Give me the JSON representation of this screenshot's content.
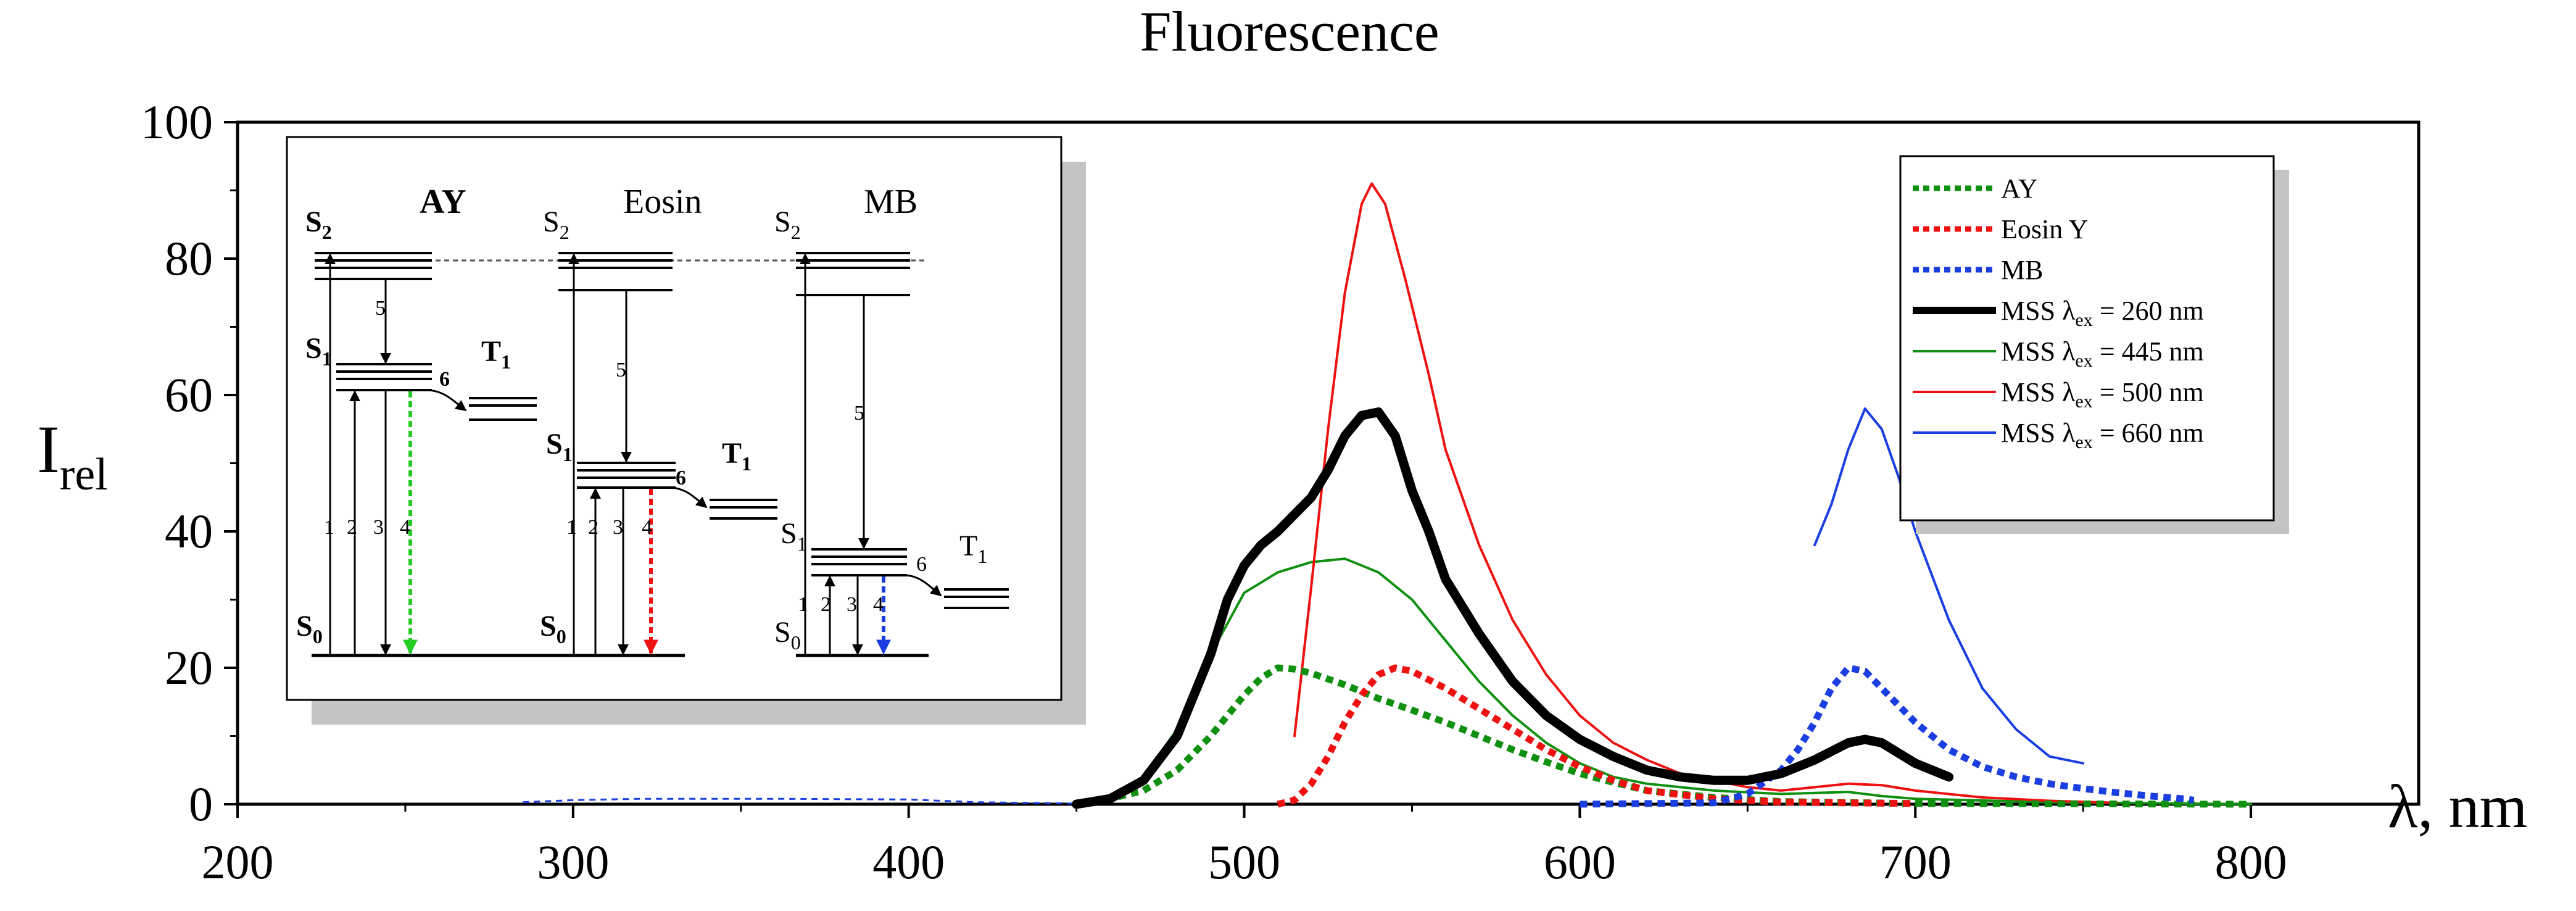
{
  "chart_data": {
    "type": "line",
    "title": "Fluorescence",
    "xlabel": "λ, nm",
    "ylabel": "I",
    "ylabel_sub": "rel",
    "xlim": [
      200,
      850
    ],
    "ylim": [
      0,
      100
    ],
    "xticks": [
      200,
      300,
      400,
      500,
      600,
      700,
      800
    ],
    "yticks": [
      0,
      20,
      40,
      60,
      80,
      100
    ],
    "grid": false,
    "legend_position": "top-right",
    "series": [
      {
        "name": "AY",
        "color": "#109010",
        "style": "dashed",
        "weight": "thick",
        "points": [
          [
            455,
            0.2
          ],
          [
            470,
            2
          ],
          [
            480,
            5
          ],
          [
            490,
            10
          ],
          [
            500,
            16
          ],
          [
            505,
            18.5
          ],
          [
            510,
            20
          ],
          [
            515,
            19.8
          ],
          [
            520,
            19.2
          ],
          [
            530,
            17.5
          ],
          [
            540,
            15.5
          ],
          [
            550,
            13.8
          ],
          [
            560,
            12
          ],
          [
            570,
            10
          ],
          [
            580,
            8
          ],
          [
            590,
            6.2
          ],
          [
            600,
            4.5
          ],
          [
            610,
            3.2
          ],
          [
            620,
            2
          ],
          [
            640,
            1
          ],
          [
            660,
            0.4
          ],
          [
            700,
            0.1
          ],
          [
            800,
            0
          ]
        ]
      },
      {
        "name": "Eosin Y",
        "color": "#ee1111",
        "style": "dashed",
        "weight": "thick",
        "points": [
          [
            510,
            0
          ],
          [
            515,
            0.6
          ],
          [
            520,
            3
          ],
          [
            525,
            7
          ],
          [
            530,
            12
          ],
          [
            535,
            16
          ],
          [
            540,
            19
          ],
          [
            545,
            20
          ],
          [
            550,
            19.5
          ],
          [
            560,
            17
          ],
          [
            570,
            14
          ],
          [
            580,
            11
          ],
          [
            590,
            8
          ],
          [
            600,
            5.5
          ],
          [
            610,
            3.5
          ],
          [
            620,
            2
          ],
          [
            640,
            0.8
          ],
          [
            660,
            0.3
          ],
          [
            700,
            0.1
          ]
        ]
      },
      {
        "name": "MB",
        "color": "#1a3ee0",
        "style": "dashed",
        "weight": "thick",
        "points": [
          [
            600,
            0
          ],
          [
            640,
            0.2
          ],
          [
            650,
            1.5
          ],
          [
            660,
            5
          ],
          [
            665,
            8
          ],
          [
            670,
            12
          ],
          [
            675,
            17
          ],
          [
            680,
            20
          ],
          [
            685,
            19.5
          ],
          [
            690,
            17
          ],
          [
            700,
            12
          ],
          [
            710,
            8
          ],
          [
            720,
            5.5
          ],
          [
            730,
            4
          ],
          [
            740,
            3
          ],
          [
            750,
            2.3
          ],
          [
            760,
            1.7
          ],
          [
            770,
            1.2
          ],
          [
            780,
            0.8
          ],
          [
            783,
            0.6
          ]
        ]
      },
      {
        "name": "MSS λex = 260 nm",
        "label_main": "MSS λ",
        "label_sub": "ex",
        "label_tail": " = 260 nm",
        "color": "#000000",
        "style": "solid",
        "weight": "heavy",
        "points": [
          [
            450,
            0
          ],
          [
            460,
            0.8
          ],
          [
            470,
            3.5
          ],
          [
            480,
            10
          ],
          [
            490,
            22
          ],
          [
            495,
            30
          ],
          [
            500,
            35
          ],
          [
            505,
            38
          ],
          [
            510,
            40
          ],
          [
            520,
            45
          ],
          [
            525,
            49
          ],
          [
            530,
            54
          ],
          [
            535,
            57
          ],
          [
            540,
            57.5
          ],
          [
            545,
            54
          ],
          [
            550,
            46
          ],
          [
            555,
            40
          ],
          [
            560,
            33
          ],
          [
            570,
            25
          ],
          [
            580,
            18
          ],
          [
            590,
            13
          ],
          [
            600,
            9.5
          ],
          [
            610,
            7
          ],
          [
            620,
            5
          ],
          [
            630,
            4
          ],
          [
            640,
            3.5
          ],
          [
            650,
            3.5
          ],
          [
            660,
            4.5
          ],
          [
            670,
            6.5
          ],
          [
            680,
            9
          ],
          [
            685,
            9.5
          ],
          [
            690,
            9
          ],
          [
            700,
            6
          ],
          [
            710,
            4
          ]
        ]
      },
      {
        "name": "MSS λex = 445 nm",
        "label_main": "MSS λ",
        "label_sub": "ex",
        "label_tail": " = 445 nm",
        "color": "#109010",
        "style": "solid",
        "weight": "thin",
        "points": [
          [
            455,
            0
          ],
          [
            465,
            2
          ],
          [
            470,
            4
          ],
          [
            480,
            11
          ],
          [
            490,
            22
          ],
          [
            500,
            31
          ],
          [
            510,
            34
          ],
          [
            520,
            35.5
          ],
          [
            530,
            36
          ],
          [
            540,
            34
          ],
          [
            550,
            30
          ],
          [
            560,
            24
          ],
          [
            570,
            18
          ],
          [
            580,
            13
          ],
          [
            590,
            9
          ],
          [
            600,
            6
          ],
          [
            610,
            4
          ],
          [
            620,
            3
          ],
          [
            640,
            2
          ],
          [
            660,
            1.5
          ],
          [
            680,
            1.8
          ],
          [
            690,
            1.2
          ],
          [
            700,
            0.8
          ],
          [
            740,
            0.3
          ],
          [
            800,
            0
          ]
        ]
      },
      {
        "name": "MSS λex = 500 nm",
        "label_main": "MSS λ",
        "label_sub": "ex",
        "label_tail": " = 500 nm",
        "color": "#ee1111",
        "style": "solid",
        "weight": "thin",
        "points": [
          [
            515,
            10
          ],
          [
            520,
            32
          ],
          [
            525,
            55
          ],
          [
            530,
            75
          ],
          [
            535,
            88
          ],
          [
            538,
            91
          ],
          [
            542,
            88
          ],
          [
            548,
            77
          ],
          [
            555,
            63
          ],
          [
            560,
            52
          ],
          [
            570,
            38
          ],
          [
            580,
            27
          ],
          [
            590,
            19
          ],
          [
            600,
            13
          ],
          [
            610,
            9
          ],
          [
            620,
            6.5
          ],
          [
            630,
            4.5
          ],
          [
            640,
            3.5
          ],
          [
            650,
            2.5
          ],
          [
            660,
            2
          ],
          [
            670,
            2.5
          ],
          [
            680,
            3
          ],
          [
            690,
            2.8
          ],
          [
            700,
            2
          ],
          [
            720,
            1
          ],
          [
            740,
            0.5
          ],
          [
            760,
            0.2
          ]
        ]
      },
      {
        "name": "MSS λex = 660 nm",
        "label_main": "MSS λ",
        "label_sub": "ex",
        "label_tail": " = 660 nm",
        "color": "#1a3ee0",
        "style": "solid",
        "weight": "thin",
        "points": [
          [
            670,
            38
          ],
          [
            675,
            44
          ],
          [
            680,
            52
          ],
          [
            685,
            58
          ],
          [
            690,
            55
          ],
          [
            695,
            48
          ],
          [
            700,
            40
          ],
          [
            710,
            27
          ],
          [
            720,
            17
          ],
          [
            730,
            11
          ],
          [
            740,
            7
          ],
          [
            750,
            6
          ]
        ]
      }
    ],
    "baseline_series": {
      "name": "baseline",
      "color": "#1a3ee0",
      "style": "dashed",
      "weight": "hair",
      "points": [
        [
          285,
          0.3
        ],
        [
          300,
          0.6
        ],
        [
          320,
          0.8
        ],
        [
          360,
          0.8
        ],
        [
          400,
          0.7
        ],
        [
          420,
          0.3
        ],
        [
          450,
          0.1
        ]
      ]
    },
    "inset": {
      "panels": [
        {
          "name": "AY",
          "S2": "S",
          "S2_sub": "2",
          "S1": "S",
          "S1_sub": "1",
          "T1": "T",
          "T1_sub": "1",
          "S0": "S",
          "S0_sub": "0",
          "arrow_color": "#22cc22",
          "transitions": [
            "1",
            "2",
            "3",
            "4",
            "5",
            "6"
          ]
        },
        {
          "name": "Eosin",
          "S2": "S",
          "S2_sub": "2",
          "S1": "S",
          "S1_sub": "1",
          "T1": "T",
          "T1_sub": "1",
          "S0": "S",
          "S0_sub": "0",
          "arrow_color": "#ee1111",
          "transitions": [
            "1",
            "2",
            "3",
            "4",
            "5",
            "6"
          ]
        },
        {
          "name": "MB",
          "S2": "S",
          "S2_sub": "2",
          "S1": "S",
          "S1_sub": "1",
          "T1": "T",
          "T1_sub": "1",
          "S0": "S",
          "S0_sub": "0",
          "arrow_color": "#1a3ee0",
          "transitions": [
            "1",
            "2",
            "3",
            "4",
            "5",
            "6"
          ]
        }
      ]
    }
  }
}
